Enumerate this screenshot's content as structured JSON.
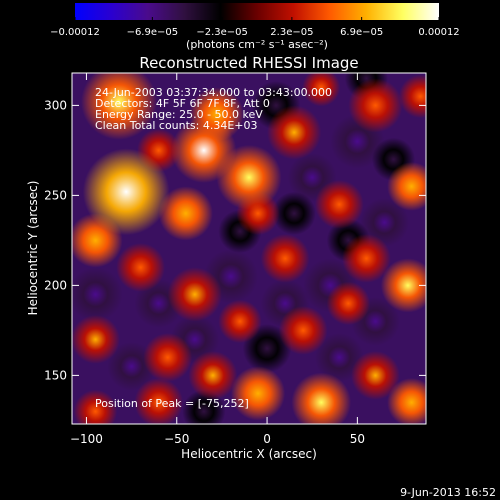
{
  "chart_data": {
    "type": "heatmap",
    "title": "Reconstructed RHESSI Image",
    "xlabel": "Heliocentric X (arcsec)",
    "ylabel": "Heliocentric Y (arcsec)",
    "xlim": [
      -108,
      88
    ],
    "ylim": [
      123,
      318
    ],
    "x_ticks": [
      {
        "value": -100,
        "label": "−100"
      },
      {
        "value": -50,
        "label": "−50"
      },
      {
        "value": 0,
        "label": "0"
      },
      {
        "value": 50,
        "label": "50"
      }
    ],
    "y_ticks": [
      {
        "value": 150,
        "label": "150"
      },
      {
        "value": 200,
        "label": "200"
      },
      {
        "value": 250,
        "label": "250"
      },
      {
        "value": 300,
        "label": "300"
      }
    ],
    "colorbar": {
      "min": -0.00012,
      "max": 0.00012,
      "tick_labels": [
        "−0.00012",
        "−6.9e−05",
        "−2.3e−05",
        "2.3e−05",
        "6.9e−05",
        "0.00012"
      ],
      "tick_values": [
        -0.00012,
        -6.9e-05,
        -2.3e-05,
        2.3e-05,
        6.9e-05,
        0.00012
      ],
      "units": "(photons cm⁻² s⁻¹ asec⁻²)"
    },
    "colormap": [
      "#0000ff",
      "#2a00d0",
      "#4a0b8c",
      "#301040",
      "#000000",
      "#6a0000",
      "#c01000",
      "#ff5a00",
      "#ffb000",
      "#ffff60",
      "#ffffff"
    ],
    "annotations": [
      "24-Jun-2003 03:37:34.000 to 03:43:00.000",
      "Detectors: 4F 5F 6F 7F 8F, Att 0",
      "Energy Range: 25.0 - 50.0 keV",
      "Clean     Total counts: 4.34E+03"
    ],
    "peak_label": "Position of Peak = [-75,252]",
    "peak": {
      "x": -75,
      "y": 252
    },
    "blobs": [
      {
        "x": -78,
        "y": 252,
        "r": 16,
        "v": 1.0
      },
      {
        "x": -82,
        "y": 302,
        "r": 14,
        "v": 0.7
      },
      {
        "x": -35,
        "y": 275,
        "r": 12,
        "v": 0.9
      },
      {
        "x": -28,
        "y": 295,
        "r": 10,
        "v": 0.6
      },
      {
        "x": -10,
        "y": 260,
        "r": 12,
        "v": 0.75
      },
      {
        "x": -45,
        "y": 240,
        "r": 10,
        "v": 0.6
      },
      {
        "x": -95,
        "y": 225,
        "r": 10,
        "v": 0.55
      },
      {
        "x": -70,
        "y": 210,
        "r": 9,
        "v": 0.45
      },
      {
        "x": -40,
        "y": 195,
        "r": 10,
        "v": 0.5
      },
      {
        "x": -95,
        "y": 170,
        "r": 9,
        "v": 0.5
      },
      {
        "x": -55,
        "y": 160,
        "r": 9,
        "v": 0.45
      },
      {
        "x": -30,
        "y": 150,
        "r": 9,
        "v": 0.5
      },
      {
        "x": -5,
        "y": 140,
        "r": 10,
        "v": 0.6
      },
      {
        "x": 30,
        "y": 135,
        "r": 11,
        "v": 0.7
      },
      {
        "x": 60,
        "y": 150,
        "r": 9,
        "v": 0.5
      },
      {
        "x": 80,
        "y": 135,
        "r": 9,
        "v": 0.6
      },
      {
        "x": 78,
        "y": 200,
        "r": 10,
        "v": 0.75
      },
      {
        "x": 55,
        "y": 215,
        "r": 9,
        "v": 0.45
      },
      {
        "x": 80,
        "y": 255,
        "r": 9,
        "v": 0.55
      },
      {
        "x": 40,
        "y": 245,
        "r": 9,
        "v": 0.45
      },
      {
        "x": 15,
        "y": 285,
        "r": 10,
        "v": 0.5
      },
      {
        "x": 60,
        "y": 300,
        "r": 10,
        "v": 0.45
      },
      {
        "x": 85,
        "y": 305,
        "r": 8,
        "v": 0.45
      },
      {
        "x": 10,
        "y": 215,
        "r": 9,
        "v": 0.4
      },
      {
        "x": 20,
        "y": 175,
        "r": 9,
        "v": 0.45
      },
      {
        "x": -15,
        "y": 180,
        "r": 8,
        "v": 0.35
      },
      {
        "x": -60,
        "y": 135,
        "r": 9,
        "v": 0.4
      },
      {
        "x": -95,
        "y": 130,
        "r": 8,
        "v": 0.4
      },
      {
        "x": 45,
        "y": 190,
        "r": 8,
        "v": 0.35
      },
      {
        "x": -5,
        "y": 240,
        "r": 8,
        "v": 0.4
      },
      {
        "x": -60,
        "y": 275,
        "r": 8,
        "v": 0.35
      },
      {
        "x": 30,
        "y": 310,
        "r": 7,
        "v": 0.35
      }
    ],
    "dips": [
      {
        "x": -95,
        "y": 195,
        "r": 10,
        "v": -0.7
      },
      {
        "x": -60,
        "y": 190,
        "r": 9,
        "v": -0.55
      },
      {
        "x": -20,
        "y": 205,
        "r": 10,
        "v": -0.6
      },
      {
        "x": 10,
        "y": 190,
        "r": 9,
        "v": -0.6
      },
      {
        "x": 35,
        "y": 200,
        "r": 10,
        "v": -0.7
      },
      {
        "x": 60,
        "y": 180,
        "r": 9,
        "v": -0.6
      },
      {
        "x": 40,
        "y": 160,
        "r": 9,
        "v": -0.55
      },
      {
        "x": 0,
        "y": 165,
        "r": 9,
        "v": -0.5
      },
      {
        "x": -40,
        "y": 170,
        "r": 9,
        "v": -0.6
      },
      {
        "x": -75,
        "y": 155,
        "r": 9,
        "v": -0.55
      },
      {
        "x": 50,
        "y": 280,
        "r": 10,
        "v": -0.6
      },
      {
        "x": 25,
        "y": 260,
        "r": 9,
        "v": -0.55
      },
      {
        "x": 65,
        "y": 235,
        "r": 9,
        "v": -0.55
      },
      {
        "x": 45,
        "y": 225,
        "r": 8,
        "v": -0.5
      },
      {
        "x": 5,
        "y": 300,
        "r": 9,
        "v": -0.45
      },
      {
        "x": 70,
        "y": 270,
        "r": 8,
        "v": -0.5
      },
      {
        "x": -15,
        "y": 230,
        "r": 8,
        "v": -0.4
      },
      {
        "x": 15,
        "y": 240,
        "r": 8,
        "v": -0.45
      },
      {
        "x": -35,
        "y": 130,
        "r": 8,
        "v": -0.4
      },
      {
        "x": 55,
        "y": 315,
        "r": 8,
        "v": -0.4
      }
    ]
  },
  "footer": {
    "timestamp": "9-Jun-2013 16:52"
  }
}
